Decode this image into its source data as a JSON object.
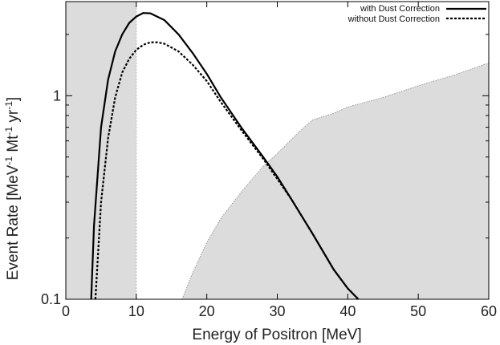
{
  "chart_data": {
    "type": "line",
    "title": "",
    "xlabel": "Energy of Positron [MeV]",
    "ylabel_parts": {
      "prefix": "Event Rate [MeV",
      "sup1": "-1",
      "mid": " Mt",
      "sup2": "-1",
      "mid2": " yr",
      "sup3": "-1",
      "suffix": "]"
    },
    "xlim": [
      0,
      60
    ],
    "ylim": [
      0.1,
      2.9
    ],
    "yscale": "log",
    "grid": false,
    "legend_position": "top-right",
    "x_ticks": [
      {
        "value": 0,
        "label": "0"
      },
      {
        "value": 10,
        "label": "10"
      },
      {
        "value": 20,
        "label": "20"
      },
      {
        "value": 30,
        "label": "30"
      },
      {
        "value": 40,
        "label": "40"
      },
      {
        "value": 50,
        "label": "50"
      },
      {
        "value": 60,
        "label": "60"
      }
    ],
    "y_ticks": [
      {
        "value": 0.1,
        "label": "0.1"
      },
      {
        "value": 1,
        "label": "1"
      }
    ],
    "shaded_regions": [
      {
        "name": "below 10 MeV",
        "x": [
          0,
          10
        ],
        "color": "#dcdcdc"
      },
      {
        "name": "background",
        "color": "#dcdcdc",
        "x": [
          16.5,
          18,
          20,
          22,
          25,
          28,
          30,
          33,
          35,
          38,
          40,
          45,
          50,
          55,
          60
        ],
        "y": [
          0.1,
          0.135,
          0.19,
          0.25,
          0.34,
          0.45,
          0.52,
          0.66,
          0.76,
          0.82,
          0.88,
          0.98,
          1.12,
          1.26,
          1.45
        ]
      }
    ],
    "series": [
      {
        "name": "with Dust Correction",
        "style": "solid",
        "color": "#000000",
        "x": [
          3.6,
          4,
          5,
          6,
          7,
          8,
          9,
          10,
          11,
          12,
          14,
          16,
          18,
          20,
          22,
          25,
          28,
          30,
          32,
          35,
          38,
          40,
          41.5
        ],
        "y": [
          0.1,
          0.23,
          0.7,
          1.2,
          1.65,
          2.0,
          2.28,
          2.45,
          2.55,
          2.54,
          2.35,
          2.0,
          1.62,
          1.28,
          0.98,
          0.69,
          0.5,
          0.4,
          0.31,
          0.21,
          0.14,
          0.113,
          0.1
        ]
      },
      {
        "name": "without Dust Correction",
        "style": "dashed",
        "color": "#000000",
        "x": [
          4.2,
          5,
          6,
          7,
          8,
          9,
          10,
          11,
          12,
          13,
          14,
          16,
          18,
          20,
          22,
          25,
          28,
          30,
          32,
          35,
          38,
          40,
          41.5
        ],
        "y": [
          0.1,
          0.3,
          0.62,
          0.98,
          1.3,
          1.52,
          1.68,
          1.78,
          1.83,
          1.83,
          1.8,
          1.65,
          1.42,
          1.18,
          0.93,
          0.67,
          0.49,
          0.39,
          0.31,
          0.21,
          0.14,
          0.113,
          0.1
        ]
      }
    ]
  }
}
